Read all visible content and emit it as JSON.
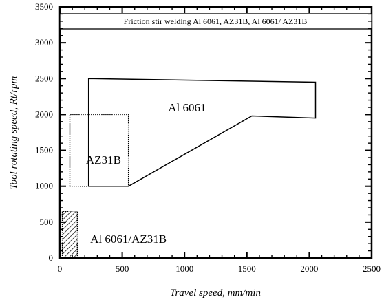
{
  "chart_data": {
    "type": "area",
    "title": "Friction stir welding Al 6061, AZ31B, Al 6061/ AZ31B",
    "xlabel": "Travel speed, mm/min",
    "ylabel": "Tool rotating speed, Rt/rpm",
    "xlim": [
      0,
      2500
    ],
    "ylim": [
      0,
      3500
    ],
    "xticks": [
      "0",
      "500",
      "1000",
      "1500",
      "2000",
      "2500"
    ],
    "yticks": [
      "0",
      "500",
      "1000",
      "1500",
      "2000",
      "2500",
      "3000",
      "3500"
    ],
    "grid": false,
    "series": [
      {
        "name": "Al 6061",
        "style": "solid outline",
        "polygon": [
          [
            230,
            1000
          ],
          [
            230,
            2500
          ],
          [
            2050,
            2450
          ],
          [
            2050,
            1950
          ],
          [
            1540,
            1980
          ],
          [
            550,
            1000
          ]
        ]
      },
      {
        "name": "AZ31B",
        "style": "dotted outline",
        "polygon": [
          [
            80,
            1000
          ],
          [
            80,
            2000
          ],
          [
            550,
            2000
          ],
          [
            550,
            1000
          ]
        ]
      },
      {
        "name": "Al 6061/AZ31B",
        "style": "dotted outline, hatched fill",
        "polygon": [
          [
            20,
            0
          ],
          [
            20,
            650
          ],
          [
            140,
            650
          ],
          [
            140,
            0
          ]
        ]
      }
    ],
    "annotations": [
      {
        "text": "Al 6061",
        "x": 1020,
        "y": 2100
      },
      {
        "text": "AZ31B",
        "x": 350,
        "y": 1370
      },
      {
        "text": "Al 6061/AZ31B",
        "x": 550,
        "y": 270
      }
    ]
  }
}
